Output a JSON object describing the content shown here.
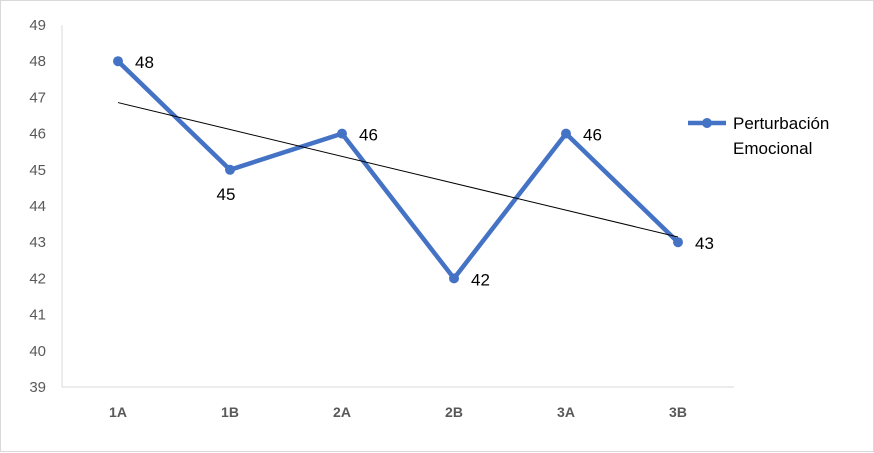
{
  "chart_data": {
    "type": "line",
    "categories": [
      "1A",
      "1B",
      "2A",
      "2B",
      "3A",
      "3B"
    ],
    "series": [
      {
        "name": "Perturbación Emocional",
        "values": [
          48,
          45,
          46,
          42,
          46,
          43
        ],
        "color": "#4472C4"
      }
    ],
    "trendline": {
      "type": "linear",
      "color": "#000000"
    },
    "ylim": [
      39,
      49
    ],
    "yticks": [
      39,
      40,
      41,
      42,
      43,
      44,
      45,
      46,
      47,
      48,
      49
    ],
    "legend_position": "right",
    "legend_lines": [
      "Perturbación",
      "Emocional"
    ],
    "grid": false
  }
}
